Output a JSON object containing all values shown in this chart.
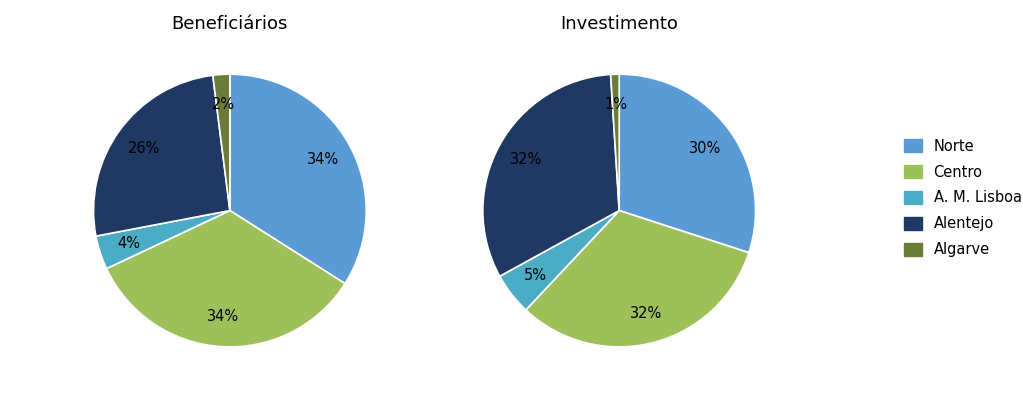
{
  "chart1_title": "Beneficiários",
  "chart2_title": "Investimento",
  "labels": [
    "Norte",
    "Centro",
    "A. M. Lisboa",
    "Alentejo",
    "Algarve"
  ],
  "colors": [
    "#5B9BD5",
    "#9DC059",
    "#4BACC6",
    "#1F3864",
    "#6B7B3A"
  ],
  "beneficiarios_values": [
    34,
    34,
    4,
    26,
    2
  ],
  "investimento_values": [
    30,
    32,
    5,
    32,
    1
  ],
  "background_color": "#ffffff",
  "startangle_ben": 90,
  "startangle_inv": 90,
  "pctdistance": 0.78,
  "label_fontsize": 10.5,
  "title_fontsize": 13,
  "legend_fontsize": 10.5
}
